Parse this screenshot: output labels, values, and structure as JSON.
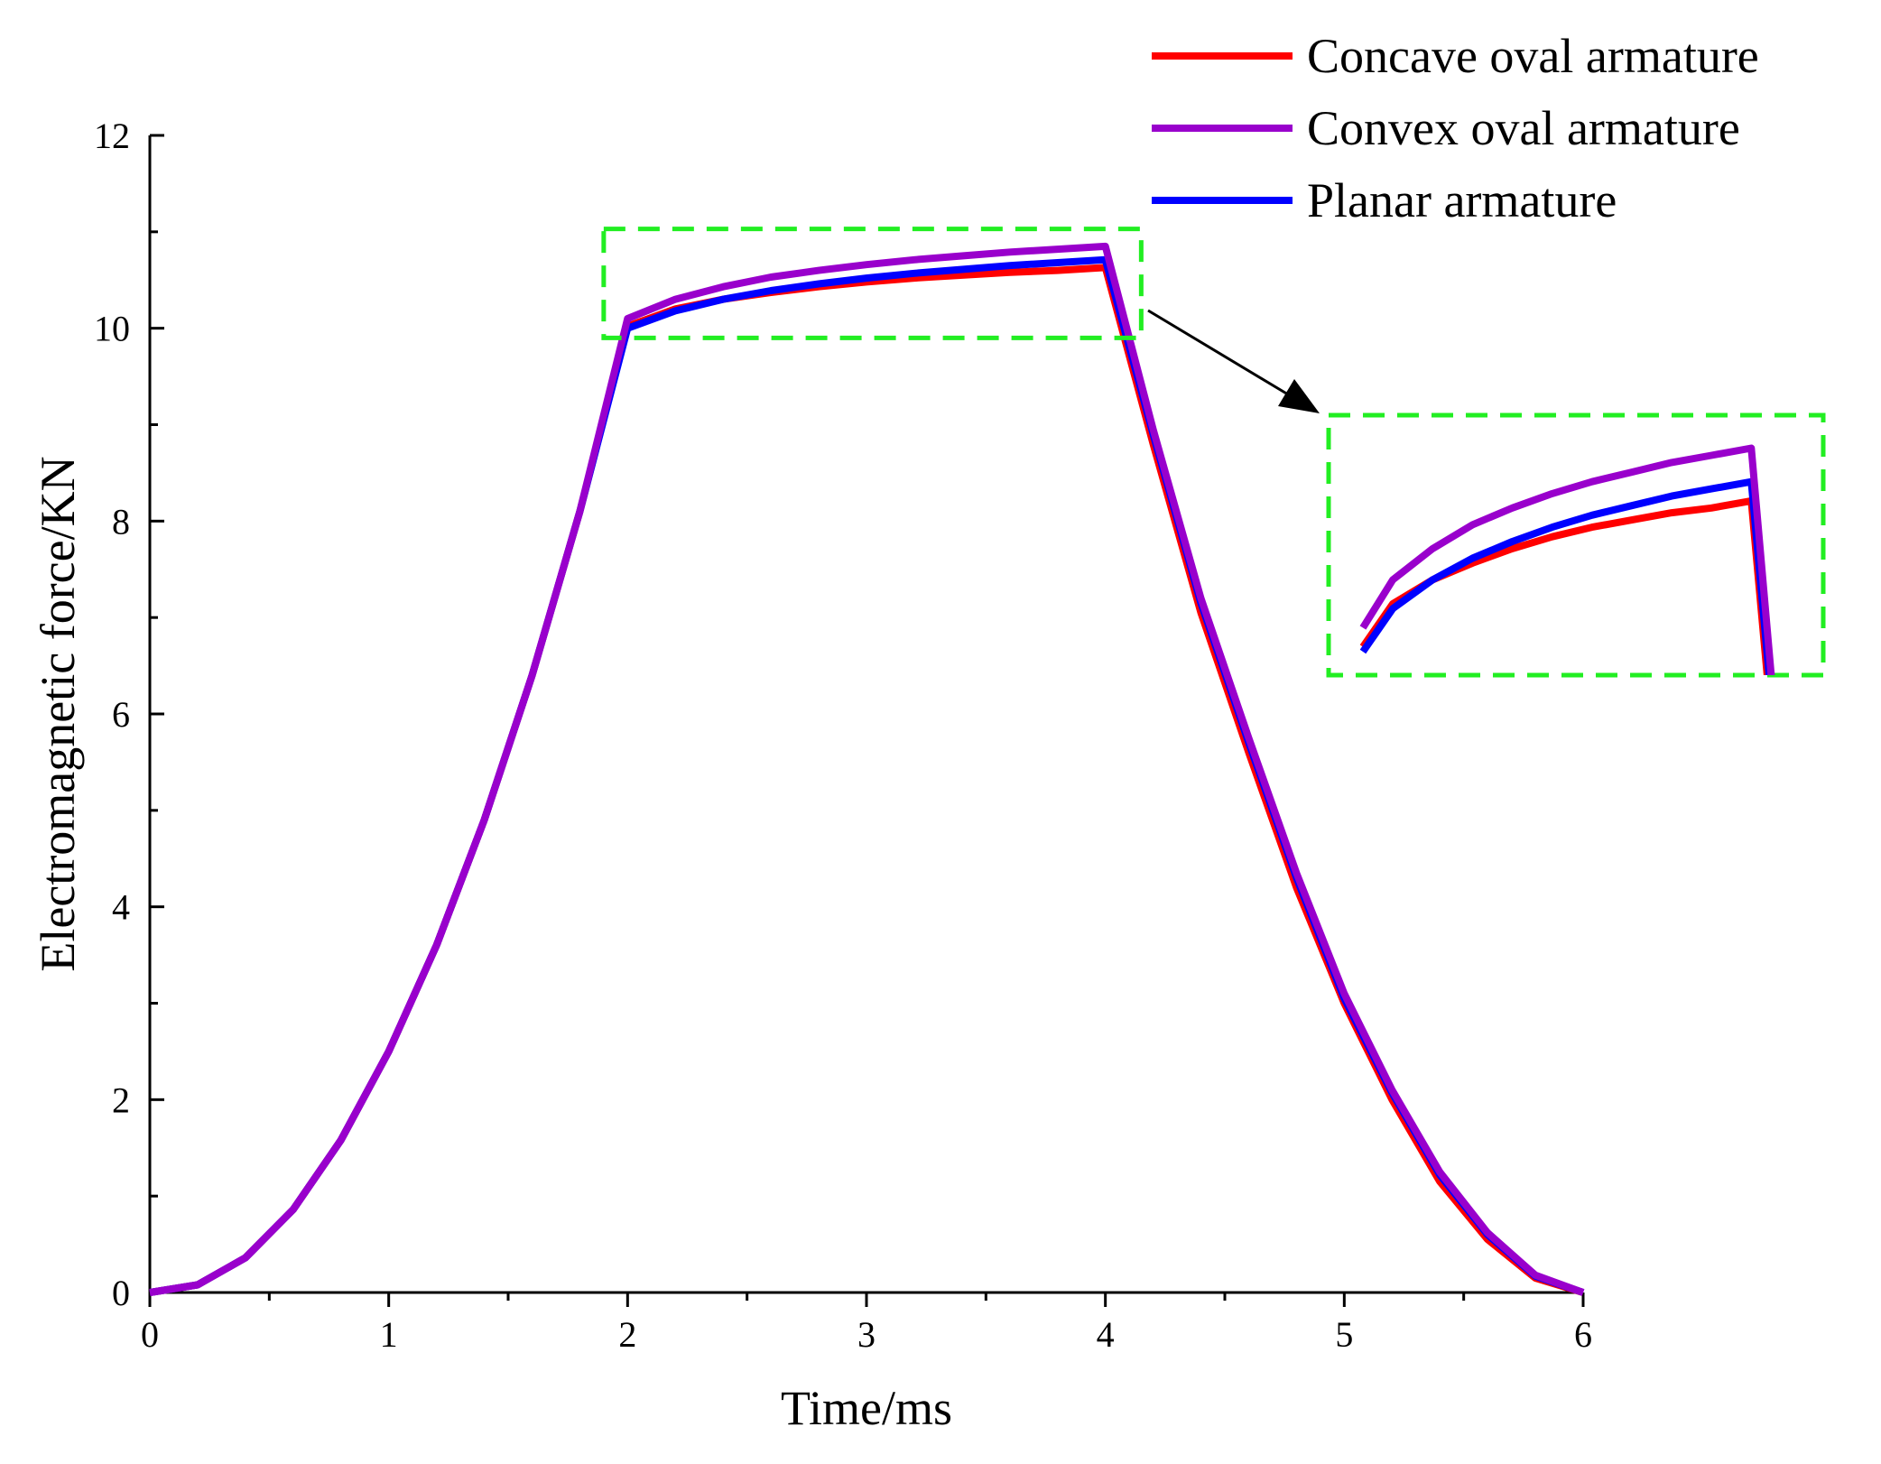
{
  "chart_data": {
    "type": "line",
    "title": "",
    "xlabel": "Time/ms",
    "ylabel": "Electromagnetic force/KN",
    "xlim": [
      0,
      6
    ],
    "ylim": [
      0,
      12
    ],
    "x_ticks": [
      "0",
      "1",
      "2",
      "3",
      "4",
      "5",
      "6"
    ],
    "y_ticks": [
      "0",
      "2",
      "4",
      "6",
      "8",
      "10",
      "12"
    ],
    "legend_position": "top-right",
    "x": [
      0,
      0.2,
      0.4,
      0.6,
      0.8,
      1.0,
      1.2,
      1.4,
      1.6,
      1.8,
      2.0,
      2.2,
      2.4,
      2.6,
      2.8,
      3.0,
      3.2,
      3.4,
      3.6,
      3.8,
      4.0,
      4.2,
      4.4,
      4.6,
      4.8,
      5.0,
      5.2,
      5.4,
      5.6,
      5.8,
      6.0
    ],
    "series": [
      {
        "name": "Concave oval armature",
        "color": "#ff0000",
        "values": [
          0,
          0.08,
          0.36,
          0.86,
          1.58,
          2.5,
          3.6,
          4.9,
          6.4,
          8.1,
          10.02,
          10.2,
          10.3,
          10.37,
          10.43,
          10.48,
          10.52,
          10.55,
          10.58,
          10.6,
          10.63,
          8.8,
          7.05,
          5.6,
          4.2,
          3.0,
          2.0,
          1.15,
          0.55,
          0.15,
          0
        ]
      },
      {
        "name": "Convex oval armature",
        "color": "#9900cc",
        "values": [
          0,
          0.08,
          0.36,
          0.86,
          1.58,
          2.5,
          3.6,
          4.9,
          6.4,
          8.1,
          10.1,
          10.3,
          10.43,
          10.53,
          10.6,
          10.66,
          10.71,
          10.75,
          10.79,
          10.82,
          10.85,
          8.95,
          7.2,
          5.75,
          4.35,
          3.1,
          2.1,
          1.25,
          0.62,
          0.18,
          0
        ]
      },
      {
        "name": "Planar armature",
        "color": "#0000ff",
        "values": [
          0,
          0.08,
          0.36,
          0.86,
          1.58,
          2.5,
          3.6,
          4.9,
          6.4,
          8.1,
          10.0,
          10.18,
          10.3,
          10.39,
          10.46,
          10.52,
          10.57,
          10.61,
          10.65,
          10.68,
          10.71,
          8.9,
          7.15,
          5.7,
          4.3,
          3.05,
          2.07,
          1.22,
          0.6,
          0.17,
          0
        ]
      }
    ],
    "zoom_region": {
      "x": [
        1.9,
        4.15
      ],
      "y": [
        9.9,
        11.03
      ]
    }
  }
}
